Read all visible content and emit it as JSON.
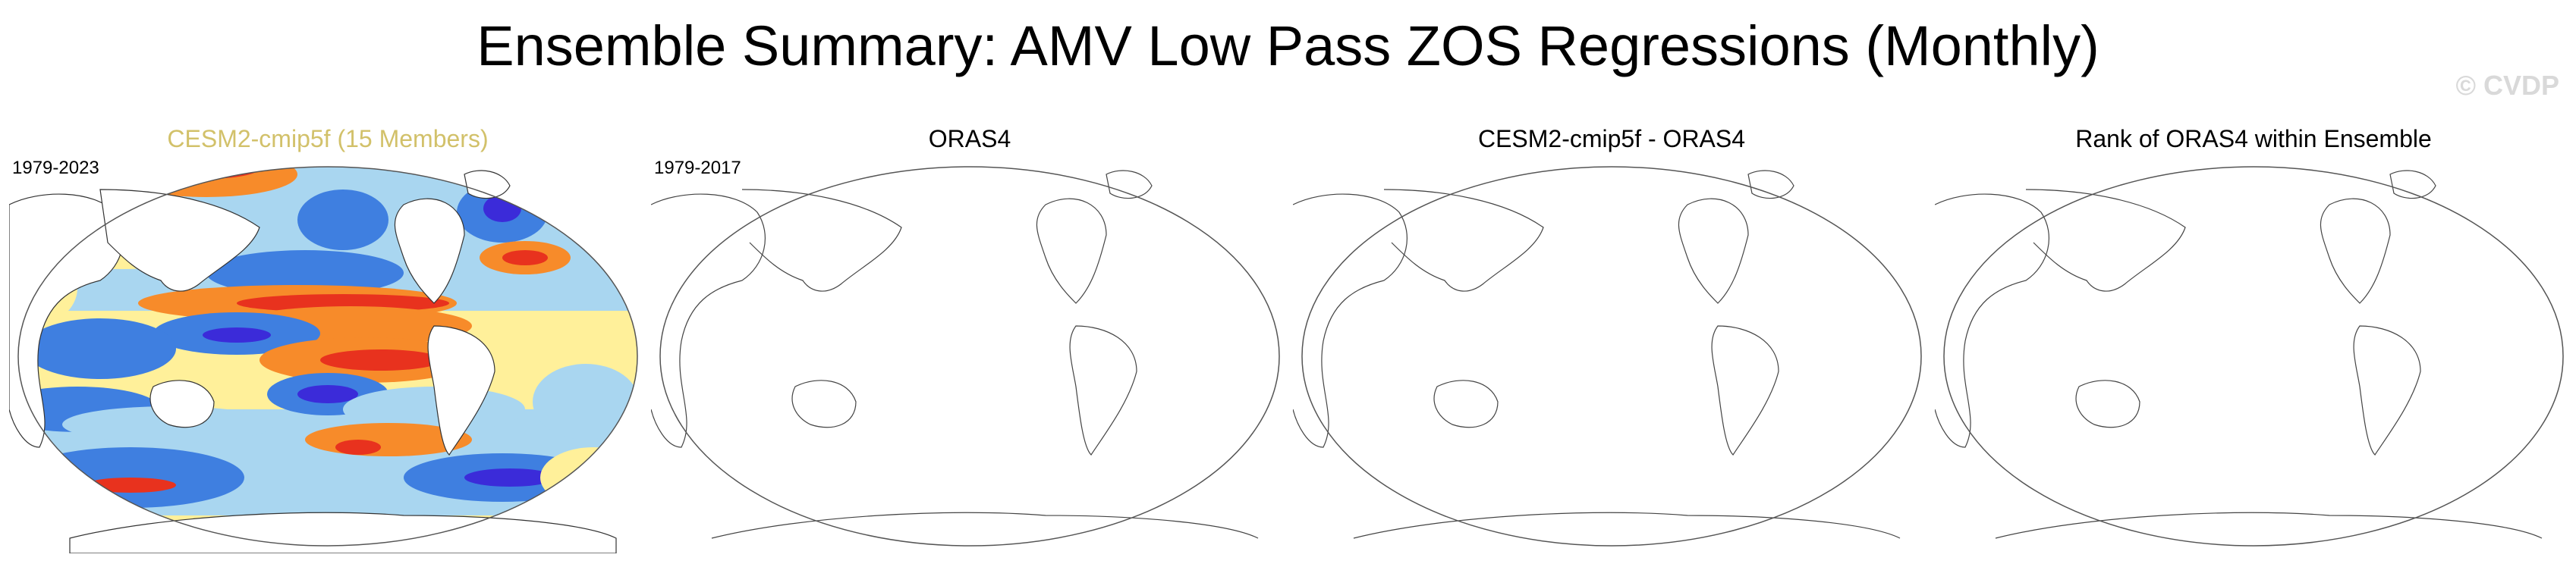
{
  "title": "Ensemble Summary: AMV Low Pass ZOS Regressions (Monthly)",
  "watermark": "© CVDP",
  "panels": [
    {
      "title": "CESM2-cmip5f (15 Members)",
      "period": "1979-2023",
      "title_color": "#d2c16a",
      "filled": true
    },
    {
      "title": "ORAS4",
      "period": "1979-2017",
      "filled": false
    },
    {
      "title": "CESM2-cmip5f - ORAS4",
      "period": "",
      "filled": false
    },
    {
      "title": "Rank of ORAS4 within Ensemble",
      "period": "",
      "filled": false
    }
  ],
  "colors": {
    "deep_blue": "#3b2bd9",
    "blue": "#3f7fe0",
    "light_blue": "#a9d6f0",
    "yellow": "#fff09a",
    "orange": "#f78b2a",
    "red": "#e8321e",
    "land": "#ffffff"
  }
}
